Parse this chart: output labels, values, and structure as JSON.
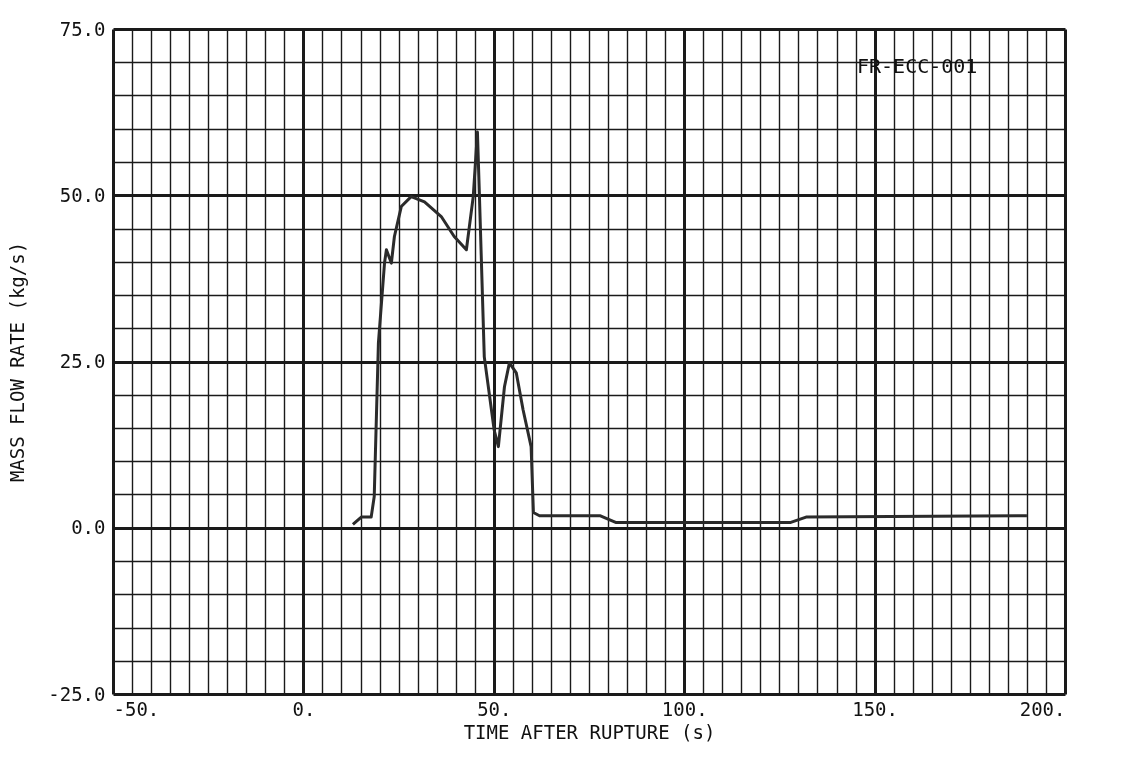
{
  "chart_data": {
    "type": "line",
    "xlabel": "TIME AFTER RUPTURE (s)",
    "ylabel": "MASS FLOW RATE (kg/s)",
    "annotations": [
      "FR-ECC-001"
    ],
    "xlim": [
      -50,
      200
    ],
    "ylim": [
      -25,
      75
    ],
    "xticks": [
      {
        "value": -50,
        "label": "-50."
      },
      {
        "value": 0,
        "label": "0."
      },
      {
        "value": 50,
        "label": "50."
      },
      {
        "value": 100,
        "label": "100."
      },
      {
        "value": 150,
        "label": "150."
      },
      {
        "value": 200,
        "label": "200."
      }
    ],
    "yticks": [
      {
        "value": -25,
        "label": "-25.0"
      },
      {
        "value": 0,
        "label": "0.0"
      },
      {
        "value": 25,
        "label": "25.0"
      },
      {
        "value": 50,
        "label": "50.0"
      },
      {
        "value": 75,
        "label": "75.0"
      }
    ],
    "grid": true,
    "line_style": "solid",
    "marker": "none",
    "x": [
      13,
      15.2,
      17.8,
      18.6,
      19.7,
      21.3,
      21.8,
      23.1,
      23.9,
      25.7,
      28.3,
      31.8,
      36.2,
      39.6,
      42.8,
      44.6,
      45.7,
      46.2,
      47.5,
      50.1,
      51.2,
      52.8,
      54.1,
      55.9,
      57.7,
      59.8,
      60.4,
      62,
      78,
      82,
      128,
      132,
      190
    ],
    "series": [
      {
        "color": "#2b2b2b",
        "values": [
          0.5,
          1.6,
          1.6,
          4.7,
          27.8,
          39.8,
          41.8,
          39.8,
          43.8,
          48.3,
          49.8,
          49.0,
          46.8,
          43.8,
          41.8,
          49.8,
          59.5,
          50.4,
          25.7,
          14.7,
          12.2,
          21.2,
          24.8,
          23.3,
          17.7,
          12.2,
          2.3,
          1.8,
          1.8,
          0.8,
          0.8,
          1.6,
          1.8
        ]
      }
    ]
  }
}
